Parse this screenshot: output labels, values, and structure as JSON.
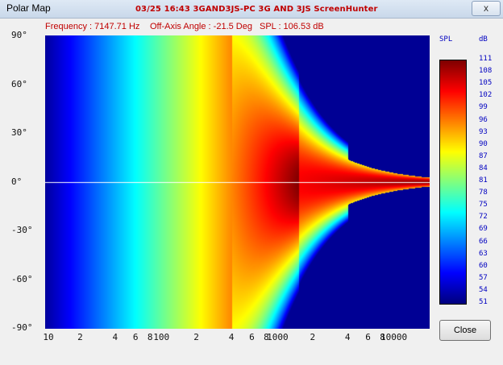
{
  "window": {
    "title": "Polar Map",
    "caption": "03/25  16:43  3GAND3JS-PC  3G AND 3JS  ScreenHunter",
    "close_glyph": "x"
  },
  "info": {
    "frequency": "Frequency : 7147.71 Hz",
    "off_axis": "Off-Axis Angle : -21.5 Deg",
    "spl": "SPL : 106.53 dB"
  },
  "legend": {
    "label_left": "SPL",
    "label_right": "dB",
    "ticks": [
      "111",
      "108",
      "105",
      "102",
      "99",
      "96",
      "93",
      "90",
      "87",
      "84",
      "81",
      "78",
      "75",
      "72",
      "69",
      "66",
      "63",
      "60",
      "57",
      "54",
      "51"
    ]
  },
  "axes": {
    "y_ticks": [
      "90°",
      "60°",
      "30°",
      "0°",
      "-30°",
      "-60°",
      "-90°"
    ],
    "x_ticks": [
      "10",
      "2",
      "4",
      "6",
      "8",
      "100",
      "2",
      "4",
      "6",
      "8",
      "1000",
      "2",
      "4",
      "6",
      "8",
      "10000"
    ]
  },
  "chart_data": {
    "type": "heatmap",
    "xlabel": "",
    "ylabel": "",
    "x_scale": "log",
    "xlim": [
      10,
      20000
    ],
    "ylim": [
      -90,
      90
    ],
    "color_range_db": [
      51,
      111
    ],
    "cursor_angle_deg": 0
  },
  "buttons": {
    "close": "Close"
  }
}
